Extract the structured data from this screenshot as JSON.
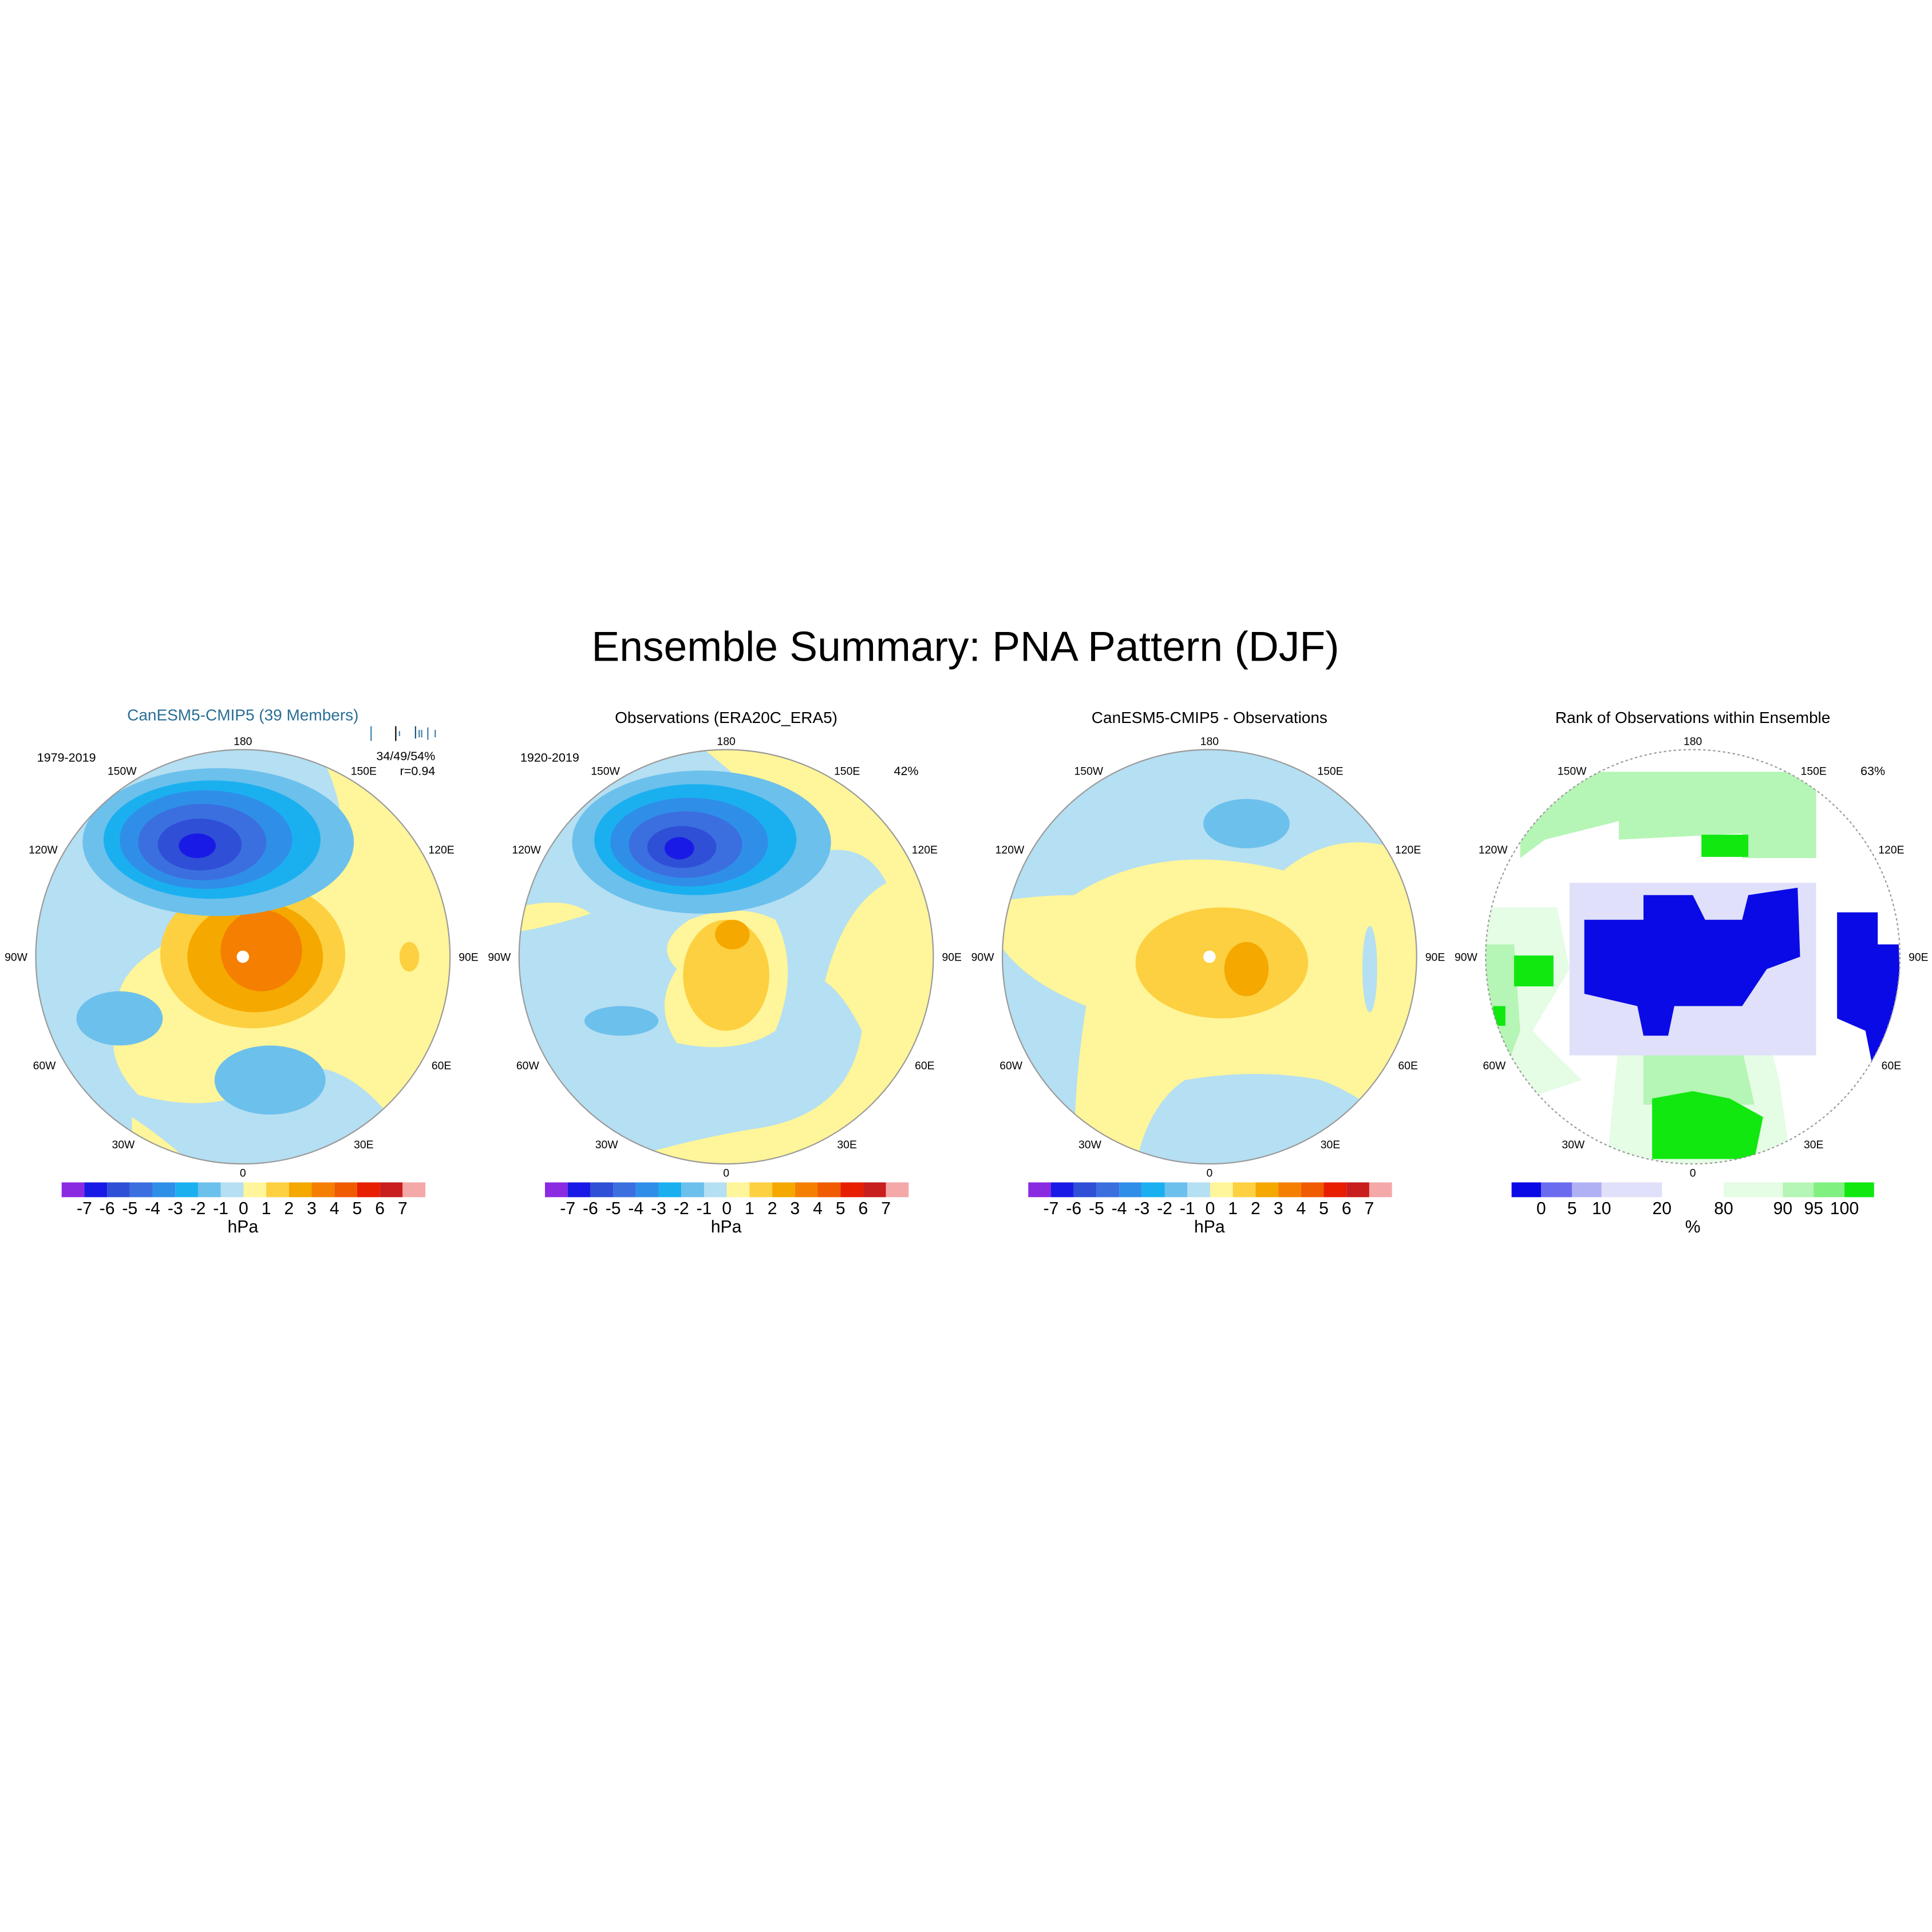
{
  "title": "Ensemble Summary: PNA Pattern (DJF)",
  "longitude_labels": [
    "180",
    "150E",
    "120E",
    "90E",
    "60E",
    "30E",
    "0",
    "30W",
    "60W",
    "90W",
    "120W",
    "150W"
  ],
  "panels": [
    {
      "title": "CanESM5-CMIP5 (39 Members)",
      "period": "1979-2019",
      "stats": [
        "34/49/54%",
        "r=0.94"
      ]
    },
    {
      "title": "Observations (ERA20C_ERA5)",
      "period": "1920-2019",
      "stats": [
        "42%"
      ]
    },
    {
      "title": "CanESM5-CMIP5 - Observations"
    },
    {
      "title": "Rank of Observations within Ensemble",
      "stats": [
        "63%"
      ]
    }
  ],
  "colorbars": [
    {
      "unit": "hPa",
      "labels": [
        -7,
        -6,
        -5,
        -4,
        -3,
        -2,
        -1,
        0,
        1,
        2,
        3,
        4,
        5,
        6,
        7
      ],
      "colors": [
        "#8a2be2",
        "#1a1ae6",
        "#2e4fd6",
        "#3b6fe0",
        "#2f8fe8",
        "#1ab0f0",
        "#6cc0ec",
        "#b5dff2",
        "#fff59a",
        "#fcd040",
        "#f5a800",
        "#f57f00",
        "#f05a00",
        "#e81e00",
        "#c81e1e",
        "#f5a8a8"
      ]
    },
    {
      "unit": "%",
      "labels": [
        0,
        5,
        10,
        20,
        80,
        90,
        95,
        100
      ],
      "colors": [
        "#0a0ae6",
        "#6b6bf0",
        "#b0b0f5",
        "#e0e0fa",
        "#ffffff",
        "#e5fce5",
        "#b5f5b5",
        "#80f080",
        "#10e810"
      ]
    }
  ]
}
